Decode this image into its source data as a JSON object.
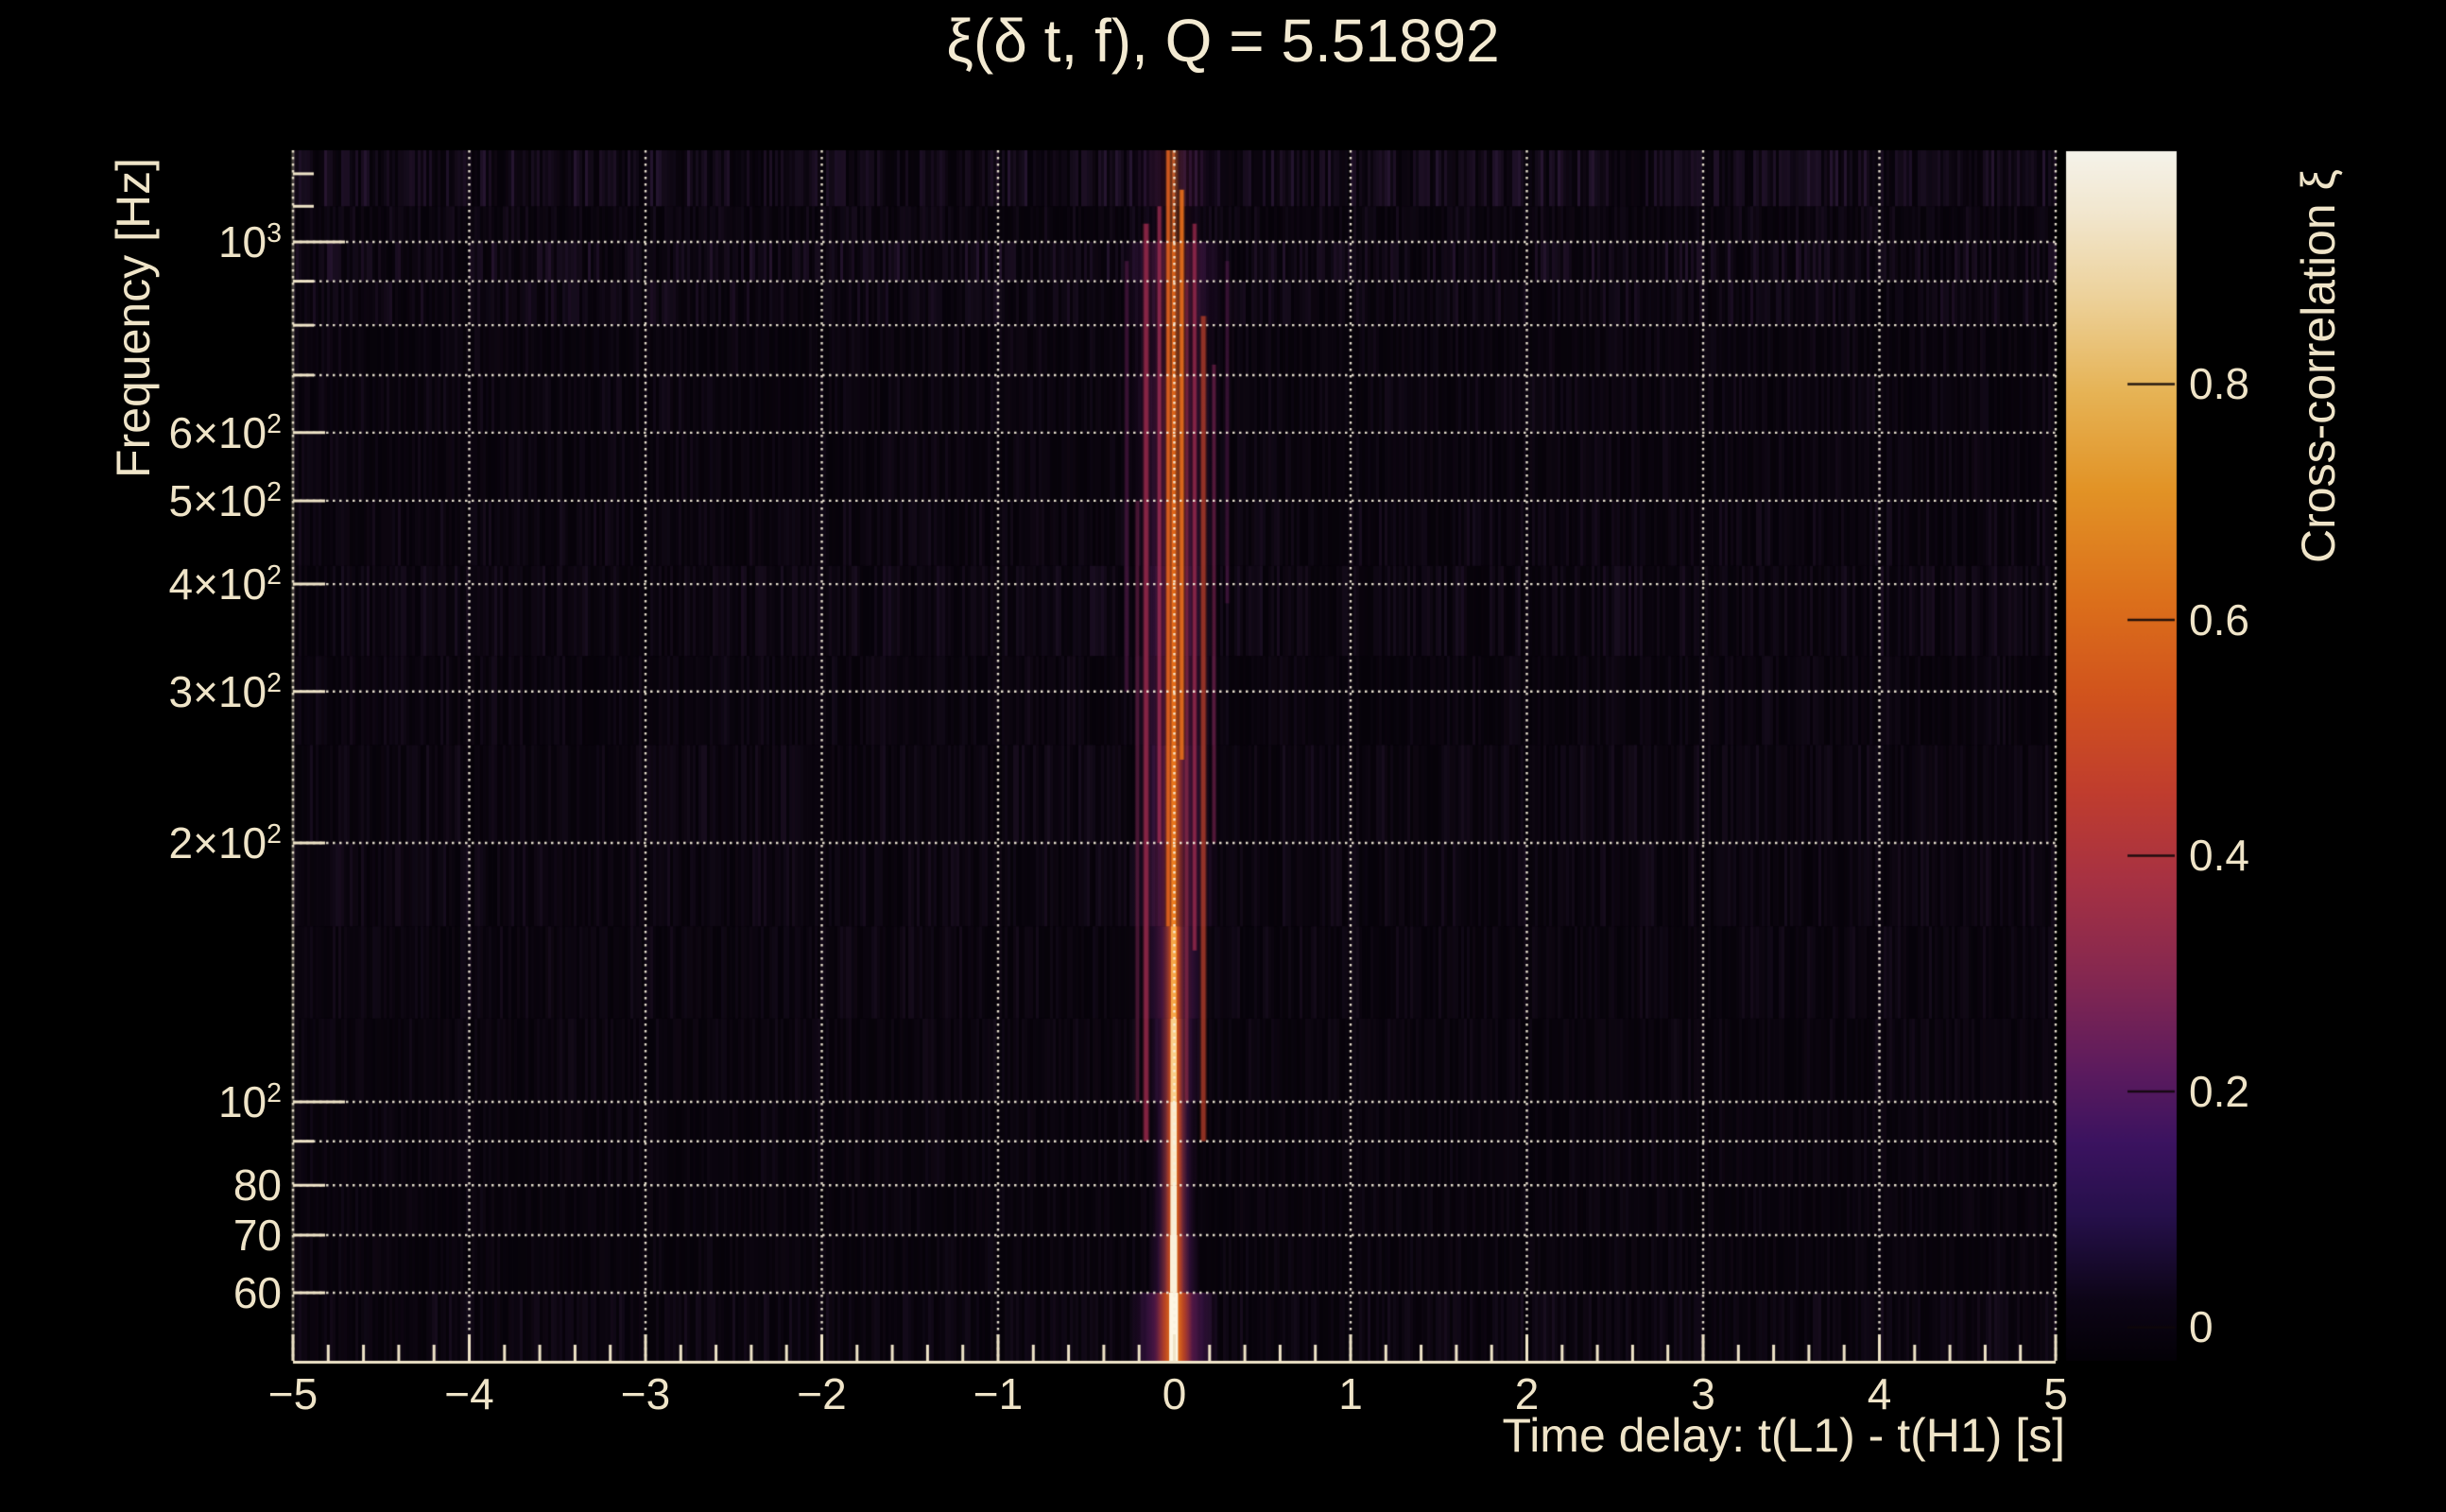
{
  "title": "ξ(δ t, f), Q = 5.51892",
  "q_value": 5.51892,
  "colors": {
    "background": "#000000",
    "plot_background": "#07030a",
    "text": "#efe4c8",
    "grid": "#f4ecd6",
    "tick": "#efe4c8",
    "noise_tint": "#3a2148"
  },
  "chart_data": {
    "type": "heatmap",
    "title": "ξ(δ t, f), Q = 5.51892",
    "xlabel": "Time delay: t(L1) - t(H1) [s]",
    "ylabel": "Frequency [Hz]",
    "zlabel": "Cross-correlation ξ",
    "x_range": [
      -5,
      5
    ],
    "x_major_tick_step": 1,
    "x_minor_tick_step": 0.2,
    "x_ticks": [
      {
        "t": -5,
        "label": "−5"
      },
      {
        "t": -4,
        "label": "−4"
      },
      {
        "t": -3,
        "label": "−3"
      },
      {
        "t": -2,
        "label": "−2"
      },
      {
        "t": -1,
        "label": "−1"
      },
      {
        "t": 0,
        "label": "0"
      },
      {
        "t": 1,
        "label": "1"
      },
      {
        "t": 2,
        "label": "2"
      },
      {
        "t": 3,
        "label": "3"
      },
      {
        "t": 4,
        "label": "4"
      },
      {
        "t": 5,
        "label": "5"
      }
    ],
    "y_scale": "log",
    "y_range_hz": [
      50,
      1278
    ],
    "y_ticks": [
      {
        "f": 1000,
        "pre": "10",
        "sup": "3"
      },
      {
        "f": 600,
        "pre": "6×10",
        "sup": "2"
      },
      {
        "f": 500,
        "pre": "5×10",
        "sup": "2"
      },
      {
        "f": 400,
        "pre": "4×10",
        "sup": "2"
      },
      {
        "f": 300,
        "pre": "3×10",
        "sup": "2"
      },
      {
        "f": 200,
        "pre": "2×10",
        "sup": "2"
      },
      {
        "f": 100,
        "pre": "10",
        "sup": "2"
      },
      {
        "f": 80,
        "pre": "80",
        "sup": ""
      },
      {
        "f": 70,
        "pre": "70",
        "sup": ""
      },
      {
        "f": 60,
        "pre": "60",
        "sup": ""
      }
    ],
    "y_minor_ticks_hz": [
      60,
      70,
      80,
      90,
      100,
      200,
      300,
      400,
      500,
      600,
      700,
      800,
      900,
      1000,
      1100,
      1200
    ],
    "y_grid_hz": [
      60,
      70,
      80,
      90,
      100,
      200,
      300,
      400,
      500,
      600,
      700,
      800,
      900,
      1000
    ],
    "x_grid": [
      -5,
      -4,
      -3,
      -2,
      -1,
      0,
      1,
      2,
      3,
      4,
      5
    ],
    "grid_style": "dotted",
    "legend_position": "right-colorbar",
    "colorbar": {
      "label": "Cross-correlation ξ",
      "zmin": -0.0285,
      "zmax": 0.9975,
      "ticks": [
        {
          "v": 0,
          "label": "0"
        },
        {
          "v": 0.2,
          "label": "0.2"
        },
        {
          "v": 0.4,
          "label": "0.4"
        },
        {
          "v": 0.6,
          "label": "0.6"
        },
        {
          "v": 0.8,
          "label": "0.8"
        }
      ],
      "palette": [
        [
          0.0,
          "#040107"
        ],
        [
          0.05,
          "#0d0517"
        ],
        [
          0.12,
          "#26104b"
        ],
        [
          0.18,
          "#3b1360"
        ],
        [
          0.24,
          "#5c1b5e"
        ],
        [
          0.32,
          "#862850"
        ],
        [
          0.4,
          "#a83242"
        ],
        [
          0.47,
          "#c03d2e"
        ],
        [
          0.55,
          "#d1531d"
        ],
        [
          0.63,
          "#dc701b"
        ],
        [
          0.72,
          "#e29326"
        ],
        [
          0.8,
          "#e6b355"
        ],
        [
          0.88,
          "#edd29b"
        ],
        [
          0.95,
          "#f2e7cf"
        ],
        [
          1.0,
          "#f5f3ea"
        ]
      ]
    },
    "signal": {
      "t_peak_s": 0,
      "xi_peak": 1.0,
      "description": "narrow ridge of high cross-correlation at zero time delay spanning 50-1280 Hz, brightest (xi~1) below 150 Hz, purple halo |dt|<0.3 s"
    },
    "rows": [
      {
        "f_hi": 1278,
        "f_lo": 1100,
        "tex": 0.95,
        "hw": 0.3,
        "a": 0.22,
        "cw": 0.014,
        "cc": "#c05a2a",
        "fw": 0
      },
      {
        "f_hi": 1100,
        "f_lo": 1000,
        "tex": 0.45,
        "hw": 0.22,
        "a": 0.16,
        "cw": 0.014,
        "cc": "#c85c24",
        "fw": 0
      },
      {
        "f_hi": 1000,
        "f_lo": 900,
        "tex": 0.85,
        "hw": 0.32,
        "a": 0.5,
        "cw": 0.018,
        "cc": "#d86018",
        "fw": 0
      },
      {
        "f_hi": 900,
        "f_lo": 800,
        "tex": 0.6,
        "hw": 0.3,
        "a": 0.42,
        "cw": 0.018,
        "cc": "#dc6218",
        "fw": 0
      },
      {
        "f_hi": 800,
        "f_lo": 700,
        "tex": 0.35,
        "hw": 0.26,
        "a": 0.38,
        "cw": 0.018,
        "cc": "#dc6218",
        "fw": 0
      },
      {
        "f_hi": 700,
        "f_lo": 600,
        "tex": 0.4,
        "hw": 0.28,
        "a": 0.55,
        "cw": 0.02,
        "cc": "#de6418",
        "fw": 0
      },
      {
        "f_hi": 600,
        "f_lo": 500,
        "tex": 0.35,
        "hw": 0.26,
        "a": 0.5,
        "cw": 0.02,
        "cc": "#de6418",
        "fw": 0
      },
      {
        "f_hi": 500,
        "f_lo": 420,
        "tex": 0.45,
        "hw": 0.24,
        "a": 0.6,
        "cw": 0.022,
        "cc": "#e06618",
        "fw": 0
      },
      {
        "f_hi": 420,
        "f_lo": 330,
        "tex": 0.55,
        "hw": 0.22,
        "a": 0.72,
        "cw": 0.022,
        "cc": "#e26a18",
        "fw": 0
      },
      {
        "f_hi": 330,
        "f_lo": 260,
        "tex": 0.4,
        "hw": 0.24,
        "a": 0.62,
        "cw": 0.024,
        "cc": "#e66e18",
        "fw": 0
      },
      {
        "f_hi": 260,
        "f_lo": 200,
        "tex": 0.5,
        "hw": 0.22,
        "a": 0.75,
        "cw": 0.026,
        "cc": "#ea761c",
        "fw": 0
      },
      {
        "f_hi": 200,
        "f_lo": 160,
        "tex": 0.45,
        "hw": 0.26,
        "a": 0.62,
        "cw": 0.026,
        "cc": "#ee7e20",
        "fw": 0
      },
      {
        "f_hi": 160,
        "f_lo": 125,
        "tex": 0.4,
        "hw": 0.2,
        "a": 0.7,
        "cw": 0.03,
        "cc": "#f8a848",
        "fw": 0.04
      },
      {
        "f_hi": 125,
        "f_lo": 100,
        "tex": 0.35,
        "hw": 0.16,
        "a": 0.75,
        "cw": 0.034,
        "cc": "#fbd08a",
        "fw": 0.045
      },
      {
        "f_hi": 100,
        "f_lo": 80,
        "tex": 0.3,
        "hw": 0.13,
        "a": 0.82,
        "cw": 0.036,
        "cc": "#fceac8",
        "fw": 0.05
      },
      {
        "f_hi": 80,
        "f_lo": 70,
        "tex": 0.28,
        "hw": 0.13,
        "a": 0.85,
        "cw": 0.036,
        "cc": "#f9eed4",
        "fw": 0.05
      },
      {
        "f_hi": 70,
        "f_lo": 60,
        "tex": 0.28,
        "hw": 0.15,
        "a": 0.88,
        "cw": 0.04,
        "cc": "#faf1da",
        "fw": 0.055
      },
      {
        "f_hi": 60,
        "f_lo": 50,
        "tex": 0.5,
        "hw": 0.26,
        "a": 1.0,
        "cw": 0.05,
        "cc": "#fdf6e4",
        "fw": 0.1
      }
    ],
    "features": [
      {
        "t": -0.16,
        "w": 0.018,
        "f_hi": 1050,
        "f_lo": 90,
        "c": "#97284a",
        "a": 0.85
      },
      {
        "t": -0.085,
        "w": 0.014,
        "f_hi": 1100,
        "f_lo": 200,
        "c": "#a83058",
        "a": 0.7
      },
      {
        "t": 0.115,
        "w": 0.014,
        "f_hi": 1050,
        "f_lo": 150,
        "c": "#a02a4e",
        "a": 0.75
      },
      {
        "t": 0.165,
        "w": 0.018,
        "f_hi": 820,
        "f_lo": 90,
        "c": "#b03c28",
        "a": 0.8
      },
      {
        "t": 0.225,
        "w": 0.012,
        "f_hi": 720,
        "f_lo": 200,
        "c": "#76214e",
        "a": 0.65
      },
      {
        "t": -0.27,
        "w": 0.014,
        "f_hi": 950,
        "f_lo": 300,
        "c": "#561a4a",
        "a": 0.6
      },
      {
        "t": 0.3,
        "w": 0.012,
        "f_hi": 950,
        "f_lo": 380,
        "c": "#521848",
        "a": 0.55
      },
      {
        "t": -0.21,
        "w": 0.012,
        "f_hi": 500,
        "f_lo": 100,
        "c": "#6d2048",
        "a": 0.6
      },
      {
        "t": 0.07,
        "w": 0.012,
        "f_hi": 900,
        "f_lo": 100,
        "c": "#8d2a44",
        "a": 0.6
      },
      {
        "t": -0.035,
        "w": 0.012,
        "f_hi": 1278,
        "f_lo": 160,
        "c": "#e06020",
        "a": 0.9
      },
      {
        "t": 0.042,
        "w": 0.016,
        "f_hi": 1150,
        "f_lo": 250,
        "c": "#df6a1a",
        "a": 0.95
      }
    ]
  }
}
